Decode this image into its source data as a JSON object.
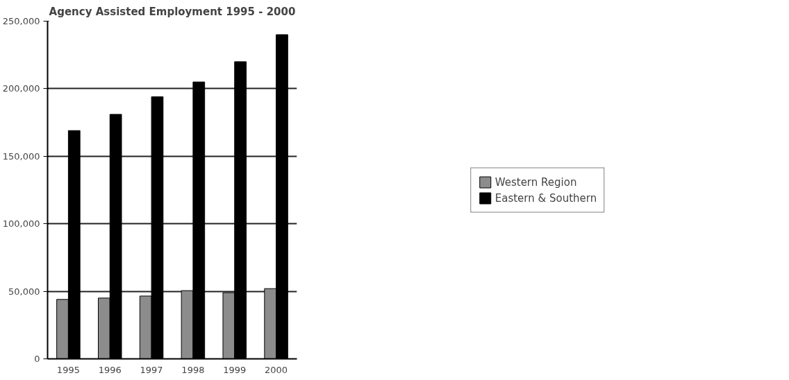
{
  "chart_data": {
    "type": "bar",
    "title": "Agency Assisted Employment 1995 - 2000",
    "categories": [
      "1995",
      "1996",
      "1997",
      "1998",
      "1999",
      "2000"
    ],
    "series": [
      {
        "name": "Western Region",
        "color": "#8c8c8c",
        "values": [
          44000,
          45000,
          46500,
          50500,
          49000,
          52000
        ]
      },
      {
        "name": "Eastern & Southern",
        "color": "#000000",
        "values": [
          169000,
          181000,
          194000,
          205000,
          220000,
          240000
        ]
      }
    ],
    "ylim": [
      0,
      250000
    ],
    "yticks": [
      {
        "value": 0,
        "label": "0"
      },
      {
        "value": 50000,
        "label": "50,000"
      },
      {
        "value": 100000,
        "label": "100,000"
      },
      {
        "value": 150000,
        "label": "150,000"
      },
      {
        "value": 200000,
        "label": "200,000"
      },
      {
        "value": 250000,
        "label": "250,000"
      }
    ],
    "grid": "y",
    "legend": "right"
  }
}
